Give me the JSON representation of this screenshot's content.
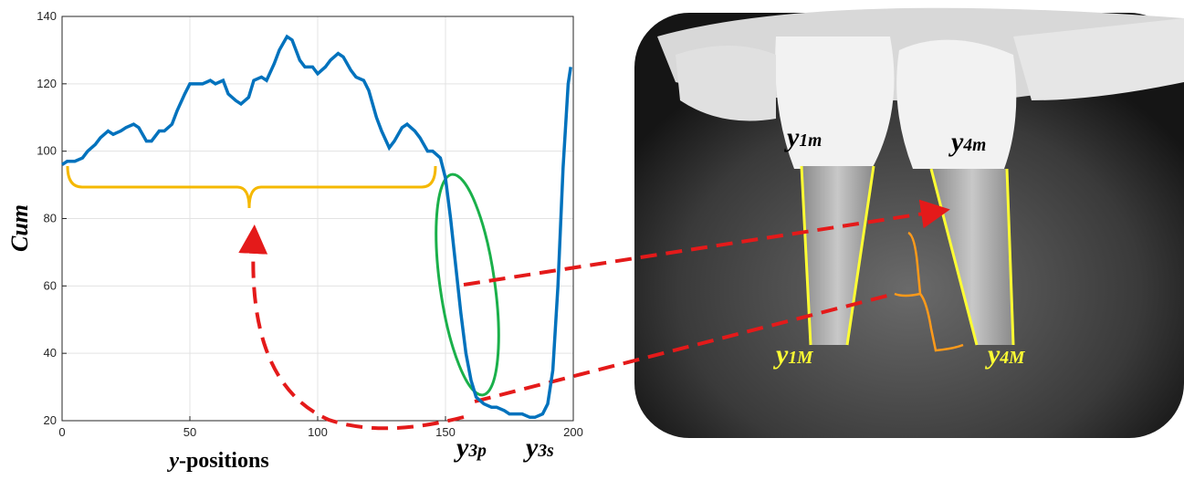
{
  "chart_data": {
    "type": "line",
    "xlabel": [
      "y",
      "-positions"
    ],
    "ylabel": "Cum",
    "x": [
      0,
      2,
      5,
      8,
      10,
      13,
      15,
      18,
      20,
      23,
      25,
      28,
      30,
      33,
      35,
      38,
      40,
      43,
      45,
      48,
      50,
      53,
      55,
      58,
      60,
      63,
      65,
      68,
      70,
      73,
      75,
      78,
      80,
      83,
      85,
      88,
      90,
      93,
      95,
      98,
      100,
      103,
      105,
      108,
      110,
      113,
      115,
      118,
      120,
      123,
      125,
      128,
      130,
      133,
      135,
      138,
      140,
      143,
      145,
      148,
      150,
      152,
      154,
      156,
      158,
      160,
      162,
      165,
      168,
      170,
      173,
      175,
      178,
      180,
      183,
      185,
      188,
      190,
      192,
      194,
      196,
      198,
      199
    ],
    "series": [
      {
        "color": "#0072bd",
        "values": [
          96,
          97,
          97,
          98,
          100,
          102,
          104,
          106,
          105,
          106,
          107,
          108,
          107,
          103,
          103,
          106,
          106,
          108,
          112,
          117,
          120,
          120,
          120,
          121,
          120,
          121,
          117,
          115,
          114,
          116,
          121,
          122,
          121,
          126,
          130,
          134,
          133,
          127,
          125,
          125,
          123,
          125,
          127,
          129,
          128,
          124,
          122,
          121,
          118,
          110,
          106,
          101,
          103,
          107,
          108,
          106,
          104,
          100,
          100,
          98,
          92,
          80,
          66,
          52,
          40,
          32,
          27,
          25,
          24,
          24,
          23,
          22,
          22,
          22,
          21,
          21,
          22,
          25,
          35,
          60,
          95,
          120,
          125
        ]
      }
    ],
    "xlim": [
      0,
      200
    ],
    "xticks": [
      0,
      50,
      100,
      150,
      200
    ],
    "ylim": [
      20,
      140
    ],
    "yticks": [
      20,
      40,
      60,
      80,
      100,
      120,
      140
    ],
    "grid": true,
    "annotations": [
      {
        "base": "y",
        "sub": "3p"
      },
      {
        "base": "y",
        "sub": "3s"
      }
    ]
  },
  "image_labels": [
    {
      "base": "y",
      "sub": "1m"
    },
    {
      "base": "y",
      "sub": "4m"
    },
    {
      "base": "y",
      "sub": "1M"
    },
    {
      "base": "y",
      "sub": "4M"
    }
  ]
}
